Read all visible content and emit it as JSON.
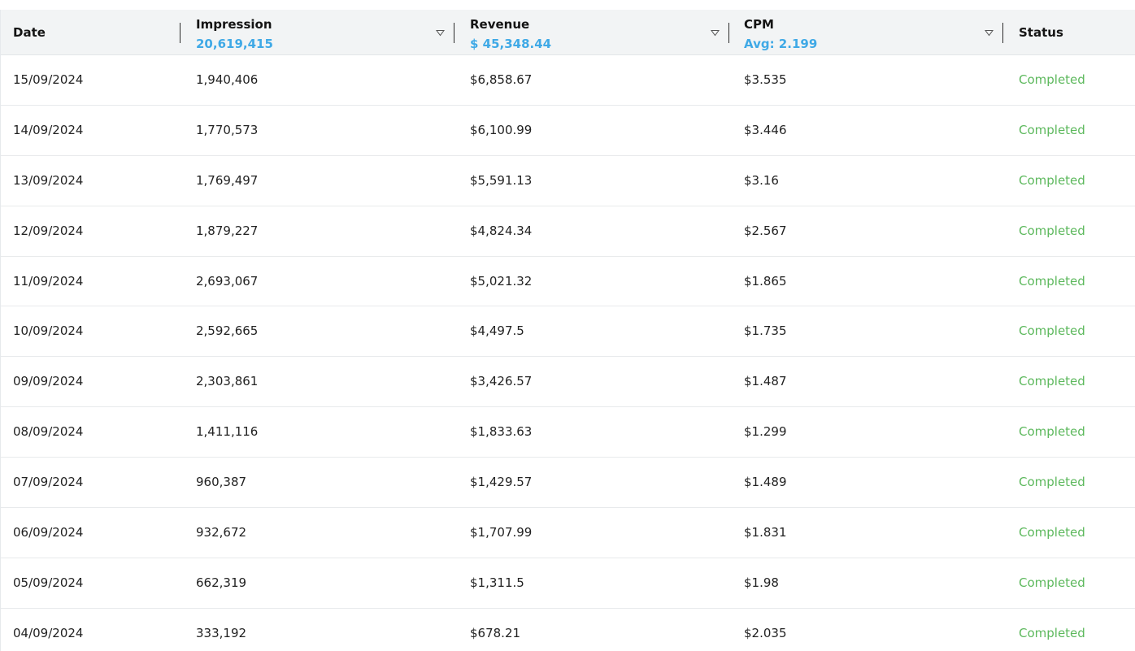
{
  "columns": {
    "date": {
      "title": "Date"
    },
    "impression": {
      "title": "Impression",
      "summary": "20,619,415"
    },
    "revenue": {
      "title": "Revenue",
      "summary": "$ 45,348.44"
    },
    "cpm": {
      "title": "CPM",
      "summary": "Avg: 2.199"
    },
    "status": {
      "title": "Status"
    }
  },
  "colors": {
    "summary": "#3fa9e6",
    "status_completed": "#5cb85c",
    "header_bg": "#f2f4f5"
  },
  "icons": {
    "sort": "sort-down-icon"
  },
  "rows": [
    {
      "date": "15/09/2024",
      "impression": "1,940,406",
      "revenue": "$6,858.67",
      "cpm": "$3.535",
      "status": "Completed"
    },
    {
      "date": "14/09/2024",
      "impression": "1,770,573",
      "revenue": "$6,100.99",
      "cpm": "$3.446",
      "status": "Completed"
    },
    {
      "date": "13/09/2024",
      "impression": "1,769,497",
      "revenue": "$5,591.13",
      "cpm": "$3.16",
      "status": "Completed"
    },
    {
      "date": "12/09/2024",
      "impression": "1,879,227",
      "revenue": "$4,824.34",
      "cpm": "$2.567",
      "status": "Completed"
    },
    {
      "date": "11/09/2024",
      "impression": "2,693,067",
      "revenue": "$5,021.32",
      "cpm": "$1.865",
      "status": "Completed"
    },
    {
      "date": "10/09/2024",
      "impression": "2,592,665",
      "revenue": "$4,497.5",
      "cpm": "$1.735",
      "status": "Completed"
    },
    {
      "date": "09/09/2024",
      "impression": "2,303,861",
      "revenue": "$3,426.57",
      "cpm": "$1.487",
      "status": "Completed"
    },
    {
      "date": "08/09/2024",
      "impression": "1,411,116",
      "revenue": "$1,833.63",
      "cpm": "$1.299",
      "status": "Completed"
    },
    {
      "date": "07/09/2024",
      "impression": "960,387",
      "revenue": "$1,429.57",
      "cpm": "$1.489",
      "status": "Completed"
    },
    {
      "date": "06/09/2024",
      "impression": "932,672",
      "revenue": "$1,707.99",
      "cpm": "$1.831",
      "status": "Completed"
    },
    {
      "date": "05/09/2024",
      "impression": "662,319",
      "revenue": "$1,311.5",
      "cpm": "$1.98",
      "status": "Completed"
    },
    {
      "date": "04/09/2024",
      "impression": "333,192",
      "revenue": "$678.21",
      "cpm": "$2.035",
      "status": "Completed"
    }
  ]
}
